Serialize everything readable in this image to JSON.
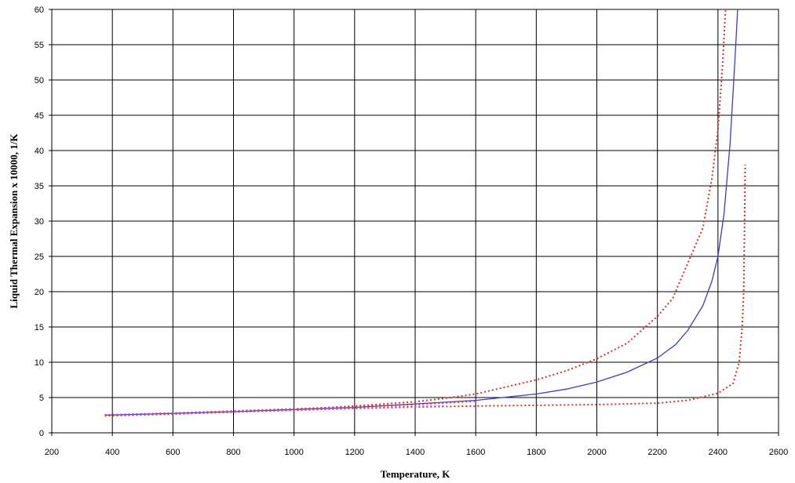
{
  "chart_data": {
    "type": "line",
    "title": "",
    "xlabel": "Temperature, K",
    "ylabel": "Liquid Thermal Expansion x 10000, 1/K",
    "xlim": [
      200,
      2600
    ],
    "ylim": [
      0,
      60
    ],
    "x_ticks": [
      200,
      400,
      600,
      800,
      1000,
      1200,
      1400,
      1600,
      1800,
      2000,
      2200,
      2400,
      2600
    ],
    "y_ticks": [
      0,
      5,
      10,
      15,
      20,
      25,
      30,
      35,
      40,
      45,
      50,
      55,
      60
    ],
    "grid": true,
    "legend": "none",
    "series": [
      {
        "color": "#3a3ad8",
        "style": "solid",
        "points": [
          [
            375,
            2.5
          ],
          [
            600,
            2.75
          ],
          [
            800,
            3.0
          ],
          [
            1000,
            3.3
          ],
          [
            1200,
            3.6
          ],
          [
            1400,
            4.1
          ],
          [
            1600,
            4.6
          ],
          [
            1800,
            5.5
          ],
          [
            1900,
            6.2
          ],
          [
            2000,
            7.2
          ],
          [
            2100,
            8.6
          ],
          [
            2200,
            10.6
          ],
          [
            2260,
            12.5
          ],
          [
            2300,
            14.5
          ],
          [
            2350,
            18.0
          ],
          [
            2380,
            21.5
          ],
          [
            2400,
            25.0
          ],
          [
            2420,
            31.0
          ],
          [
            2440,
            41.0
          ],
          [
            2455,
            52.0
          ],
          [
            2465,
            60.0
          ]
        ]
      },
      {
        "color": "#e0302a",
        "style": "dotted",
        "points": [
          [
            375,
            2.4
          ],
          [
            600,
            2.65
          ],
          [
            800,
            2.95
          ],
          [
            1000,
            3.3
          ],
          [
            1200,
            3.8
          ],
          [
            1400,
            4.4
          ],
          [
            1500,
            4.9
          ],
          [
            1600,
            5.5
          ],
          [
            1800,
            7.5
          ],
          [
            1900,
            8.8
          ],
          [
            2000,
            10.5
          ],
          [
            2100,
            12.7
          ],
          [
            2200,
            16.5
          ],
          [
            2250,
            19.0
          ],
          [
            2300,
            24.0
          ],
          [
            2350,
            29.0
          ],
          [
            2380,
            36.0
          ],
          [
            2400,
            43.0
          ],
          [
            2415,
            52.0
          ],
          [
            2425,
            60.0
          ]
        ]
      },
      {
        "color": "#e0302a",
        "style": "dotted",
        "points": [
          [
            375,
            2.45
          ],
          [
            600,
            2.7
          ],
          [
            800,
            2.95
          ],
          [
            1000,
            3.2
          ],
          [
            1200,
            3.45
          ],
          [
            1400,
            3.65
          ],
          [
            1600,
            3.8
          ],
          [
            1800,
            3.9
          ],
          [
            2000,
            4.0
          ],
          [
            2200,
            4.2
          ],
          [
            2300,
            4.6
          ],
          [
            2400,
            5.6
          ],
          [
            2450,
            7.0
          ],
          [
            2470,
            10.0
          ],
          [
            2480,
            15.0
          ],
          [
            2485,
            20.0
          ],
          [
            2488,
            30.0
          ],
          [
            2490,
            38.0
          ]
        ]
      },
      {
        "color": "#e0302a",
        "style": "dotted",
        "points": [
          [
            375,
            2.5
          ],
          [
            600,
            2.8
          ],
          [
            800,
            3.1
          ],
          [
            1000,
            3.4
          ],
          [
            1200,
            3.7
          ],
          [
            1400,
            4.0
          ],
          [
            1600,
            4.5
          ]
        ]
      },
      {
        "color": "#c040c0",
        "style": "dotted",
        "points": [
          [
            375,
            2.55
          ],
          [
            600,
            2.8
          ],
          [
            800,
            3.05
          ],
          [
            1000,
            3.25
          ],
          [
            1200,
            3.5
          ],
          [
            1400,
            3.7
          ],
          [
            1500,
            3.8
          ]
        ]
      }
    ]
  }
}
